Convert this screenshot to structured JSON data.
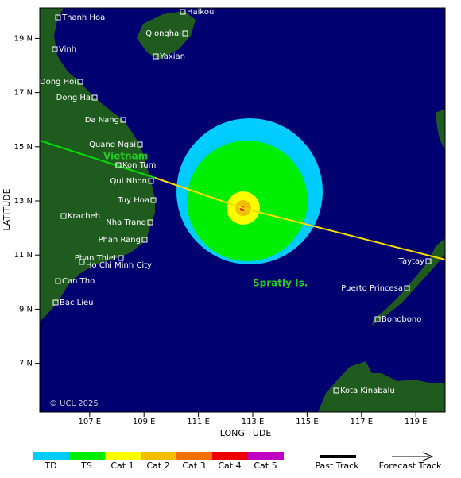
{
  "map": {
    "x_label": "LONGITUDE",
    "y_label": "LATITUDE",
    "lon_ticks": [
      {
        "value": 107,
        "label": "107 E"
      },
      {
        "value": 109,
        "label": "109 E"
      },
      {
        "value": 111,
        "label": "111 E"
      },
      {
        "value": 113,
        "label": "113 E"
      },
      {
        "value": 115,
        "label": "115 E"
      },
      {
        "value": 117,
        "label": "117 E"
      },
      {
        "value": 119,
        "label": "119 E"
      }
    ],
    "lat_ticks": [
      {
        "value": 19,
        "label": "19 N"
      },
      {
        "value": 17,
        "label": "17 N"
      },
      {
        "value": 15,
        "label": "15 N"
      },
      {
        "value": 13,
        "label": "13 N"
      },
      {
        "value": 11,
        "label": "11 N"
      },
      {
        "value": 9,
        "label": "9 N"
      },
      {
        "value": 7,
        "label": "7 N"
      }
    ],
    "places": [
      "Thanh Hoa",
      "Vinh",
      "Dong Hoi",
      "Dong Ha",
      "Da Nang",
      "Quang Ngai",
      "Kon Tum",
      "Qui Nhon",
      "Tuy Hoa",
      "Kracheh",
      "Nha Trang",
      "Phan Rang",
      "Phan Thiet",
      "Ho Chi Minh City",
      "Can Tho",
      "Bac Lieu",
      "Haikou",
      "Qionghai",
      "Yaxian",
      "Taytay",
      "Puerto Princesa",
      "Bonobono",
      "Kota Kinabalu"
    ],
    "regions": [
      "Vietnam",
      "Spratly Is."
    ],
    "copyright": "© UCL 2025"
  },
  "legend": {
    "categories": [
      {
        "label": "TD",
        "color": "#00ccff"
      },
      {
        "label": "TS",
        "color": "#00ee00"
      },
      {
        "label": "Cat 1",
        "color": "#ffff00"
      },
      {
        "label": "Cat 2",
        "color": "#f0c000"
      },
      {
        "label": "Cat 3",
        "color": "#f07000"
      },
      {
        "label": "Cat 4",
        "color": "#ee0000"
      },
      {
        "label": "Cat 5",
        "color": "#c000c0"
      }
    ],
    "past_track": "Past Track",
    "forecast_track": "Forecast Track"
  }
}
